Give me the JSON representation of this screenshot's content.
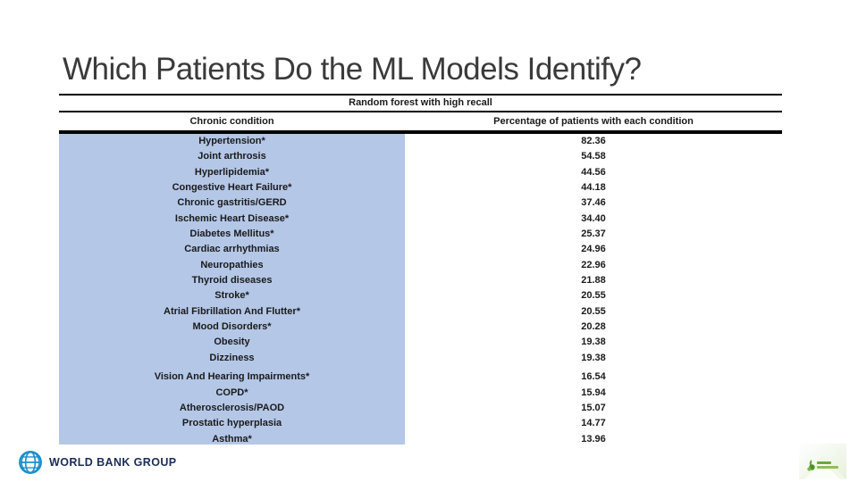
{
  "slide": {
    "title": "Which Patients Do the ML Models Identify?"
  },
  "table": {
    "caption": "Random forest with high recall",
    "columns": [
      "Chronic condition",
      "Percentage of patients with each condition"
    ],
    "groups": [
      {
        "rows": [
          {
            "condition": "Hypertension*",
            "percentage": "82.36"
          },
          {
            "condition": "Joint arthrosis",
            "percentage": "54.58"
          },
          {
            "condition": "Hyperlipidemia*",
            "percentage": "44.56"
          },
          {
            "condition": "Congestive Heart Failure*",
            "percentage": "44.18"
          },
          {
            "condition": "Chronic gastritis/GERD",
            "percentage": "37.46"
          },
          {
            "condition": "Ischemic Heart Disease*",
            "percentage": "34.40"
          },
          {
            "condition": "Diabetes Mellitus*",
            "percentage": "25.37"
          },
          {
            "condition": "Cardiac arrhythmias",
            "percentage": "24.96"
          },
          {
            "condition": "Neuropathies",
            "percentage": "22.96"
          },
          {
            "condition": "Thyroid diseases",
            "percentage": "21.88"
          },
          {
            "condition": "Stroke*",
            "percentage": "20.55"
          },
          {
            "condition": "Atrial Fibrillation And Flutter*",
            "percentage": "20.55"
          },
          {
            "condition": "Mood Disorders*",
            "percentage": "20.28"
          },
          {
            "condition": "Obesity",
            "percentage": "19.38"
          },
          {
            "condition": "Dizziness",
            "percentage": "19.38"
          }
        ]
      },
      {
        "rows": [
          {
            "condition": "Vision And Hearing Impairments*",
            "percentage": "16.54"
          },
          {
            "condition": "COPD*",
            "percentage": "15.94"
          },
          {
            "condition": "Atherosclerosis/PAOD",
            "percentage": "15.07"
          },
          {
            "condition": "Prostatic hyperplasia",
            "percentage": "14.77"
          },
          {
            "condition": "Asthma*",
            "percentage": "13.96"
          }
        ]
      }
    ]
  },
  "footer": {
    "world_bank_label": "WORLD BANK GROUP",
    "icons": [
      "globe-icon",
      "partner-logo"
    ]
  },
  "colors": {
    "highlight_blue": "#b4c7e7",
    "title_gray": "#3a3a3a",
    "rule_black": "#000000",
    "wb_navy": "#1b2c56",
    "wb_globe_blue": "#1d8fc9",
    "partner_green": "#6aaa3c"
  }
}
